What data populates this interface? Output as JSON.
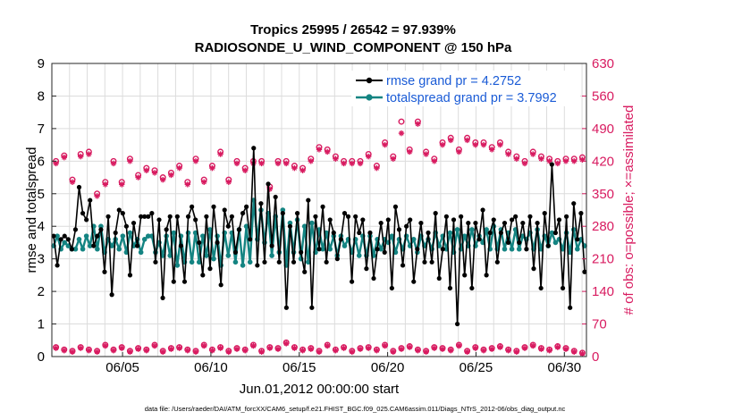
{
  "chart_data": {
    "type": "line",
    "title_line1": "Tropics 25995 / 26542 = 97.939%",
    "title_line2": "RADIOSONDE_U_WIND_COMPONENT @ 150 hPa",
    "xlabel": "Jun.01,2012 00:00:00 start",
    "ylabel_left": "rmse and totalspread",
    "ylabel_right": "# of obs: o=possible; ×=assimilated",
    "footer": "data file: /Users/raeder/DAI/ATM_forcXX/CAM6_setup/f.e21.FHIST_BGC.f09_025.CAM6assim.011/Diags_NTrS_2012-06/obs_diag_output.nc",
    "xlim": [
      1.0,
      31.25
    ],
    "ylim_left": [
      0,
      9
    ],
    "ylim_right": [
      0,
      630
    ],
    "x_ticks": [
      5,
      10,
      15,
      20,
      25,
      30
    ],
    "x_tick_labels": [
      "06/05",
      "06/10",
      "06/15",
      "06/20",
      "06/25",
      "06/30"
    ],
    "y_left_ticks": [
      "0",
      "1",
      "2",
      "3",
      "4",
      "5",
      "6",
      "7",
      "8",
      "9"
    ],
    "y_right_ticks": [
      "0",
      "70",
      "140",
      "210",
      "280",
      "350",
      "420",
      "490",
      "560",
      "630"
    ],
    "colors": {
      "rmse": "#000000",
      "spread": "#148482",
      "obs": "#d81b60",
      "legend_text": "#1a5bd6",
      "grid": "#dcdcdc"
    },
    "legend": [
      "rmse grand pr = 4.2752",
      "totalspread grand pr = 3.7992"
    ],
    "series": [
      {
        "name": "rmse",
        "values": [
          3.7,
          2.8,
          3.6,
          3.7,
          3.6,
          3.3,
          3.9,
          5.2,
          4.4,
          4.2,
          4.8,
          3.4,
          3.7,
          3.9,
          2.6,
          4.3,
          1.9,
          3.8,
          4.5,
          4.4,
          4.0,
          2.5,
          4.1,
          3.4,
          4.3,
          4.3,
          4.3,
          4.4,
          2.9,
          4.2,
          1.8,
          3.9,
          4.3,
          2.3,
          4.3,
          3.4,
          2.3,
          4.3,
          4.6,
          4.2,
          3.5,
          2.5,
          4.3,
          2.7,
          4.6,
          3.5,
          2.2,
          4.5,
          4.0,
          4.3,
          3.2,
          3.9,
          4.4,
          4.6,
          3.6,
          6.4,
          2.8,
          4.7,
          2.9,
          5.3,
          3.4,
          4.9,
          2.9,
          4.4,
          1.5,
          4.0,
          2.9,
          4.4,
          3.2,
          2.6,
          4.8,
          1.5,
          4.3,
          3.3,
          4.6,
          2.9,
          4.2,
          3.8,
          3.0,
          3.6,
          4.4,
          4.3,
          2.3,
          4.3,
          3.8,
          4.2,
          2.7,
          3.8,
          2.4,
          3.3,
          4.1,
          3.2,
          4.2,
          2.1,
          4.6,
          3.9,
          2.8,
          4.0,
          4.2,
          2.3,
          3.3,
          4.1,
          2.9,
          3.8,
          2.9,
          4.4,
          2.4,
          3.3,
          4.3,
          2.1,
          4.2,
          1.0,
          4.3,
          2.5,
          4.1,
          2.1,
          4.1,
          3.6,
          4.5,
          2.5,
          3.8,
          4.2,
          2.9,
          3.8,
          4.1,
          3.5,
          4.2,
          4.3,
          3.5,
          4.1,
          3.3,
          4.3,
          2.7,
          4.1,
          2.1,
          4.4,
          3.4,
          5.9,
          3.8,
          4.2,
          2.1,
          4.3,
          1.5,
          4.7,
          3.6,
          4.4,
          2.6
        ]
      },
      {
        "name": "totalspread",
        "values": [
          3.4,
          3.7,
          3.3,
          3.5,
          3.4,
          3.3,
          3.3,
          3.6,
          3.3,
          3.7,
          3.4,
          4.0,
          3.3,
          4.0,
          3.2,
          3.6,
          3.4,
          3.6,
          3.3,
          3.7,
          3.2,
          3.8,
          3.4,
          3.6,
          3.2,
          3.6,
          3.7,
          3.7,
          3.2,
          3.5,
          3.1,
          3.7,
          3.1,
          3.8,
          2.8,
          3.7,
          2.9,
          3.8,
          2.9,
          3.8,
          2.9,
          3.7,
          3.1,
          3.9,
          3.0,
          3.7,
          2.8,
          3.8,
          3.1,
          3.8,
          2.9,
          3.9,
          2.8,
          4.0,
          2.9,
          4.8,
          3.6,
          4.5,
          3.5,
          4.4,
          3.1,
          4.3,
          3.2,
          4.5,
          2.8,
          4.1,
          3.2,
          4.2,
          3.0,
          4.0,
          2.9,
          4.1,
          3.2,
          3.9,
          3.3,
          3.8,
          3.3,
          3.7,
          3.1,
          3.7,
          3.4,
          3.6,
          3.2,
          3.6,
          3.1,
          3.7,
          3.1,
          3.7,
          3.1,
          3.6,
          3.3,
          3.6,
          3.5,
          3.7,
          3.2,
          3.6,
          3.3,
          3.7,
          3.4,
          3.6,
          3.2,
          3.7,
          3.4,
          3.6,
          3.3,
          3.8,
          3.4,
          3.7,
          3.3,
          3.8,
          3.2,
          3.9,
          3.3,
          3.7,
          3.4,
          3.9,
          3.4,
          3.7,
          3.5,
          3.9,
          3.3,
          4.0,
          3.3,
          3.9,
          3.3,
          3.8,
          3.3,
          3.9,
          3.3,
          3.7,
          3.6,
          3.8,
          3.3,
          3.9,
          3.3,
          3.7,
          3.4,
          3.8,
          3.5,
          3.6,
          3.3,
          3.8,
          3.2,
          3.9,
          3.3,
          3.6,
          3.4
        ]
      }
    ],
    "obs_possible": [
      420,
      432,
      380,
      435,
      440,
      350,
      375,
      420,
      375,
      425,
      390,
      405,
      400,
      385,
      395,
      410,
      375,
      425,
      380,
      410,
      440,
      380,
      420,
      405,
      420,
      420,
      365,
      420,
      420,
      410,
      405,
      425,
      450,
      445,
      430,
      420,
      420,
      420,
      435,
      410,
      460,
      430,
      505,
      445,
      505,
      440,
      425,
      460,
      470,
      445,
      470,
      460,
      460,
      450,
      460,
      440,
      430,
      420,
      440,
      430,
      425,
      420,
      425,
      425,
      428
    ],
    "obs_assimilated": [
      415,
      428,
      375,
      430,
      435,
      345,
      370,
      415,
      370,
      420,
      385,
      400,
      395,
      380,
      390,
      405,
      370,
      420,
      375,
      405,
      435,
      375,
      415,
      400,
      415,
      415,
      360,
      415,
      415,
      405,
      400,
      420,
      445,
      440,
      425,
      415,
      415,
      415,
      430,
      405,
      455,
      425,
      480,
      440,
      500,
      435,
      420,
      455,
      465,
      440,
      465,
      455,
      455,
      445,
      455,
      435,
      425,
      415,
      435,
      425,
      420,
      415,
      420,
      420,
      423
    ],
    "obs_bottom_possible": [
      20,
      15,
      12,
      20,
      15,
      12,
      25,
      15,
      20,
      12,
      18,
      15,
      25,
      12,
      18,
      20,
      15,
      12,
      25,
      15,
      20,
      12,
      18,
      15,
      25,
      12,
      20,
      18,
      30,
      20,
      15,
      18,
      12,
      25,
      15,
      20,
      12,
      18,
      20,
      15,
      25,
      12,
      18,
      22,
      15,
      12,
      20,
      18,
      15,
      25,
      12,
      20,
      15,
      18,
      22,
      15,
      12,
      20,
      25,
      18,
      15,
      22,
      18,
      12,
      8
    ],
    "obs_bottom_assimilated": [
      18,
      13,
      10,
      18,
      13,
      10,
      23,
      13,
      18,
      10,
      16,
      13,
      23,
      10,
      16,
      18,
      13,
      10,
      23,
      13,
      18,
      10,
      16,
      13,
      23,
      10,
      18,
      16,
      28,
      18,
      13,
      16,
      10,
      23,
      13,
      18,
      10,
      16,
      18,
      13,
      23,
      10,
      16,
      20,
      13,
      10,
      18,
      16,
      13,
      23,
      10,
      18,
      13,
      16,
      20,
      13,
      10,
      18,
      23,
      16,
      13,
      20,
      16,
      10,
      6
    ]
  }
}
